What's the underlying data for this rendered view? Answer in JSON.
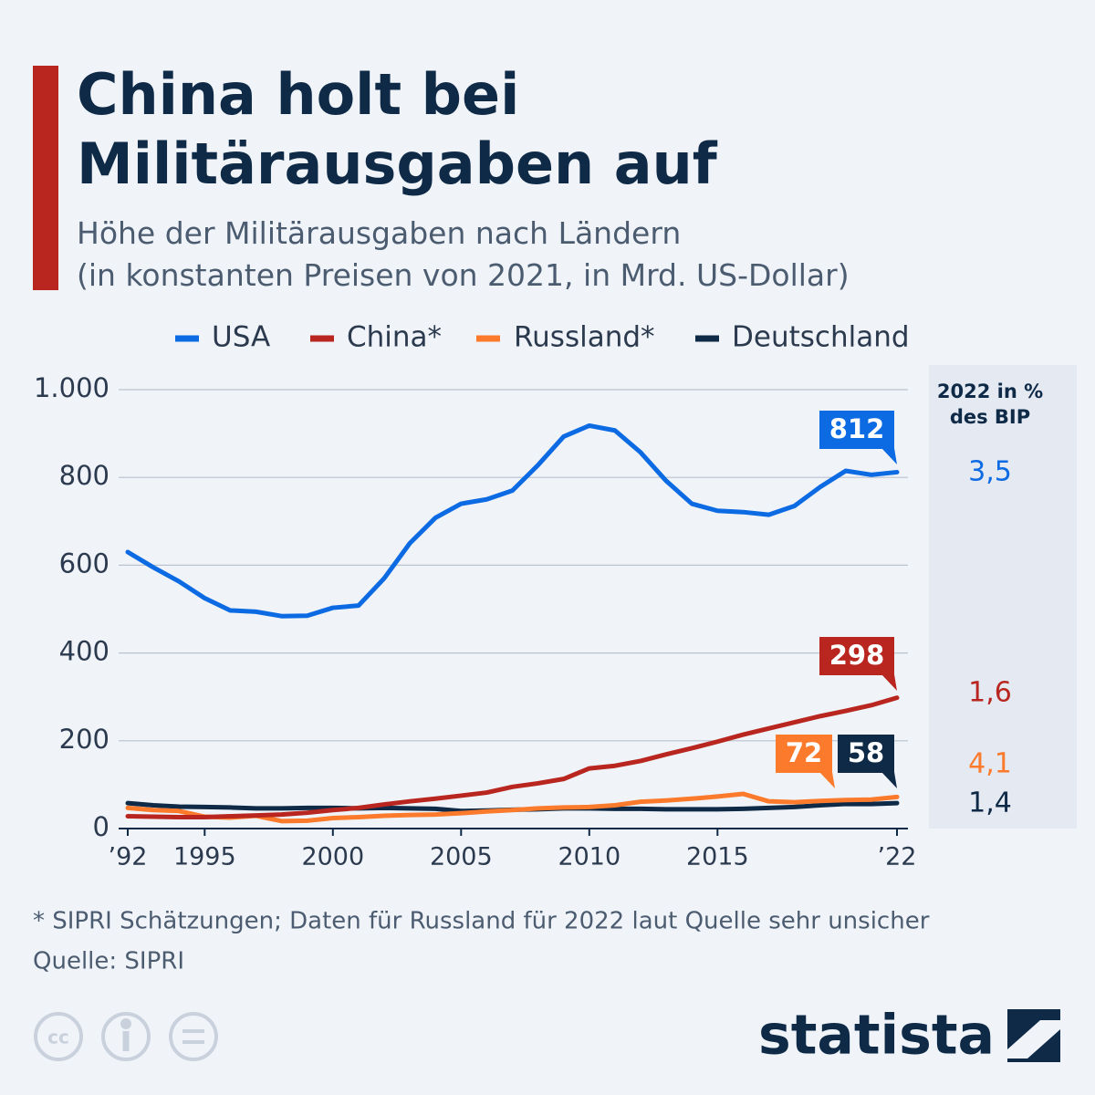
{
  "chart_data": {
    "type": "line",
    "title": "China holt bei Militärausgaben auf",
    "subtitle": [
      "Höhe der Militärausgaben nach Ländern",
      "(in konstanten Preisen von 2021, in Mrd. US-Dollar)"
    ],
    "x": [
      1992,
      1993,
      1994,
      1995,
      1996,
      1997,
      1998,
      1999,
      2000,
      2001,
      2002,
      2003,
      2004,
      2005,
      2006,
      2007,
      2008,
      2009,
      2010,
      2011,
      2012,
      2013,
      2014,
      2015,
      2016,
      2017,
      2018,
      2019,
      2020,
      2021,
      2022
    ],
    "xlim": [
      1992,
      2022
    ],
    "xticks": [
      {
        "value": 1992,
        "label": "’92"
      },
      1995,
      2000,
      2005,
      2010,
      2015,
      {
        "value": 2022,
        "label": "’22"
      }
    ],
    "ylim": [
      0,
      1000
    ],
    "yticks": [
      0,
      200,
      400,
      600,
      800,
      {
        "value": 1000,
        "label": "1.000"
      }
    ],
    "grid": true,
    "series": [
      {
        "name": "USA",
        "color": "#0c6ae3",
        "gdp_share": "3,5",
        "values": [
          630,
          595,
          563,
          525,
          497,
          494,
          484,
          485,
          503,
          508,
          570,
          650,
          708,
          740,
          750,
          770,
          828,
          893,
          918,
          907,
          857,
          792,
          740,
          724,
          721,
          715,
          735,
          778,
          815,
          806,
          812
        ]
      },
      {
        "name": "China*",
        "color": "#b8261f",
        "gdp_share": "1,6",
        "values": [
          28,
          27,
          26,
          26,
          28,
          30,
          32,
          36,
          42,
          47,
          55,
          62,
          68,
          75,
          82,
          95,
          103,
          113,
          137,
          143,
          154,
          169,
          183,
          198,
          214,
          228,
          242,
          256,
          268,
          281,
          298
        ]
      },
      {
        "name": "Russland*",
        "color": "#fb7a2b",
        "gdp_share": "4,1",
        "values": [
          47,
          42,
          40,
          27,
          25,
          29,
          17,
          18,
          24,
          26,
          29,
          31,
          32,
          35,
          39,
          42,
          46,
          48,
          49,
          53,
          61,
          64,
          68,
          73,
          79,
          62,
          60,
          63,
          65,
          66,
          72
        ]
      },
      {
        "name": "Deutschland",
        "color": "#0f2a47",
        "gdp_share": "1,4",
        "values": [
          58,
          53,
          50,
          49,
          48,
          46,
          46,
          47,
          47,
          46,
          47,
          46,
          45,
          40,
          41,
          43,
          44,
          46,
          46,
          45,
          45,
          44,
          44,
          44,
          45,
          47,
          49,
          53,
          56,
          56,
          58
        ]
      }
    ],
    "gdp_share_title": [
      "2022 in %",
      "des BIP"
    ],
    "footnote": "* SIPRI Schätzungen; Daten für Russland für 2022 laut Quelle sehr unsicher",
    "source": "Quelle: SIPRI",
    "brand": "statista"
  }
}
